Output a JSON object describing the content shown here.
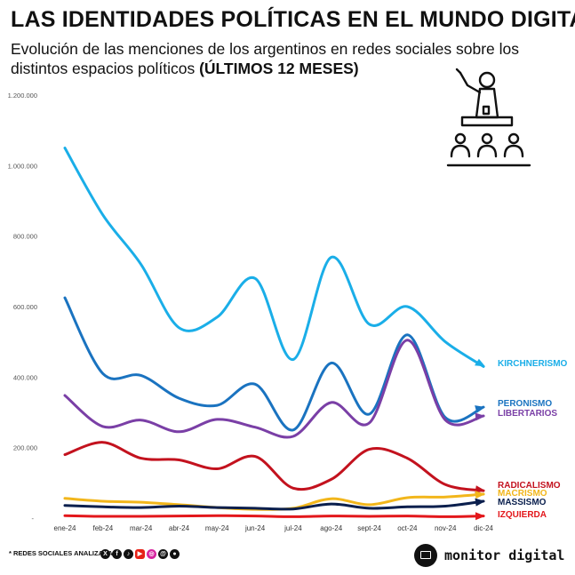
{
  "header": {
    "title": "LAS IDENTIDADES POLÍTICAS EN EL MUNDO DIGITAL",
    "subtitle": "Evolución de las menciones de los argentinos en redes sociales sobre los distintos espacios políticos ",
    "subtitle_bold": "(ÚLTIMOS 12 MESES)"
  },
  "footer": {
    "note": "* REDES SOCIALES ANALIZADAS",
    "social_icons": [
      "x-icon",
      "facebook-icon",
      "tiktok-icon",
      "youtube-icon",
      "instagram-icon",
      "threads-icon",
      "reddit-icon"
    ],
    "brand": "monitor digital"
  },
  "illustration": {
    "icon": "podium-speaker-audience-icon"
  },
  "chart_data": {
    "type": "line",
    "categories": [
      "ene-24",
      "feb-24",
      "mar-24",
      "abr-24",
      "may-24",
      "jun-24",
      "jul-24",
      "ago-24",
      "sept-24",
      "oct-24",
      "nov-24",
      "dic-24"
    ],
    "y_ticks": [
      "-",
      "200.000",
      "400.000",
      "600.000",
      "800.000",
      "1.000.000",
      "1.200.000"
    ],
    "ylim": [
      0,
      1200000
    ],
    "grid": false,
    "legend": "end-of-line labels",
    "series": [
      {
        "name": "KIRCHNERISMO",
        "color": "#1aaee8",
        "values": [
          1050000,
          860000,
          720000,
          540000,
          570000,
          680000,
          450000,
          740000,
          550000,
          600000,
          500000,
          430000
        ]
      },
      {
        "name": "PERONISMO",
        "color": "#1a73c0",
        "values": [
          625000,
          410000,
          405000,
          340000,
          320000,
          380000,
          250000,
          440000,
          295000,
          520000,
          285000,
          315000
        ]
      },
      {
        "name": "LIBERTARIOS",
        "color": "#7a3fa6",
        "values": [
          348000,
          260000,
          278000,
          245000,
          280000,
          258000,
          232000,
          328000,
          270000,
          505000,
          278000,
          290000
        ]
      },
      {
        "name": "RADICALISMO",
        "color": "#c3121e",
        "values": [
          180000,
          215000,
          170000,
          165000,
          140000,
          175000,
          85000,
          110000,
          195000,
          170000,
          95000,
          78000
        ]
      },
      {
        "name": "MACRISMO",
        "color": "#f2b61b",
        "values": [
          56000,
          48000,
          45000,
          38000,
          30000,
          25000,
          28000,
          55000,
          38000,
          58000,
          60000,
          68000
        ]
      },
      {
        "name": "MASSISMO",
        "color": "#0a1f4d",
        "values": [
          36000,
          32000,
          30000,
          34000,
          30000,
          28000,
          26000,
          40000,
          28000,
          32000,
          34000,
          48000
        ]
      },
      {
        "name": "IZQUIERDA",
        "color": "#e3171b",
        "values": [
          7000,
          5000,
          5000,
          6000,
          7000,
          6000,
          4000,
          6000,
          5000,
          6000,
          4000,
          6000
        ]
      }
    ]
  }
}
